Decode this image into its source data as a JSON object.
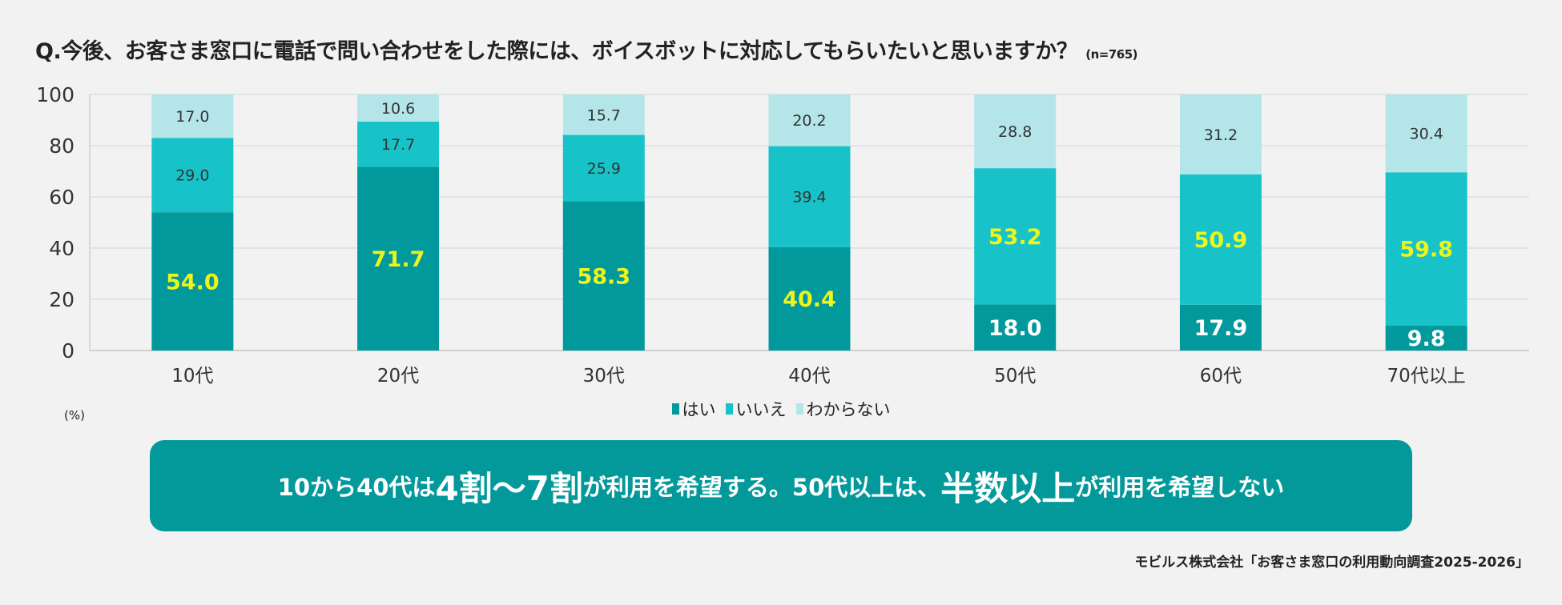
{
  "title": {
    "question": "Q.今後、お客さま窓口に電話で問い合わせをした際には、ボイスボットに対応してもらいたいと思いますか？",
    "sample": "(n=765)"
  },
  "chart_data": {
    "type": "bar",
    "stacked": true,
    "categories": [
      "10代",
      "20代",
      "30代",
      "40代",
      "50代",
      "60代",
      "70代以上"
    ],
    "series": [
      {
        "name": "はい",
        "color": "#02999c",
        "values": [
          54.0,
          71.7,
          58.3,
          40.4,
          18.0,
          17.9,
          9.8
        ]
      },
      {
        "name": "いいえ",
        "color": "#17c3c9",
        "values": [
          29.0,
          17.7,
          25.9,
          39.4,
          53.2,
          50.9,
          59.8
        ]
      },
      {
        "name": "わからない",
        "color": "#b4e6e9",
        "values": [
          17.0,
          10.6,
          15.7,
          20.2,
          28.8,
          31.2,
          30.4
        ]
      }
    ],
    "ylim": [
      0,
      100
    ],
    "yticks": [
      0,
      20,
      40,
      60,
      80,
      100
    ],
    "ylabel": "(%)",
    "grid": true,
    "legend": "bottom-center",
    "highlight_color": "#eef51a"
  },
  "banner": {
    "p1": "10から40代は",
    "b1": "4割〜7割",
    "p2": "が利用を希望する。50代以上は、",
    "b2": "半数以上",
    "p3": "が利用を希望しない"
  },
  "source": "モビルス株式会社「お客さま窓口の利用動向調査2025-2026」"
}
